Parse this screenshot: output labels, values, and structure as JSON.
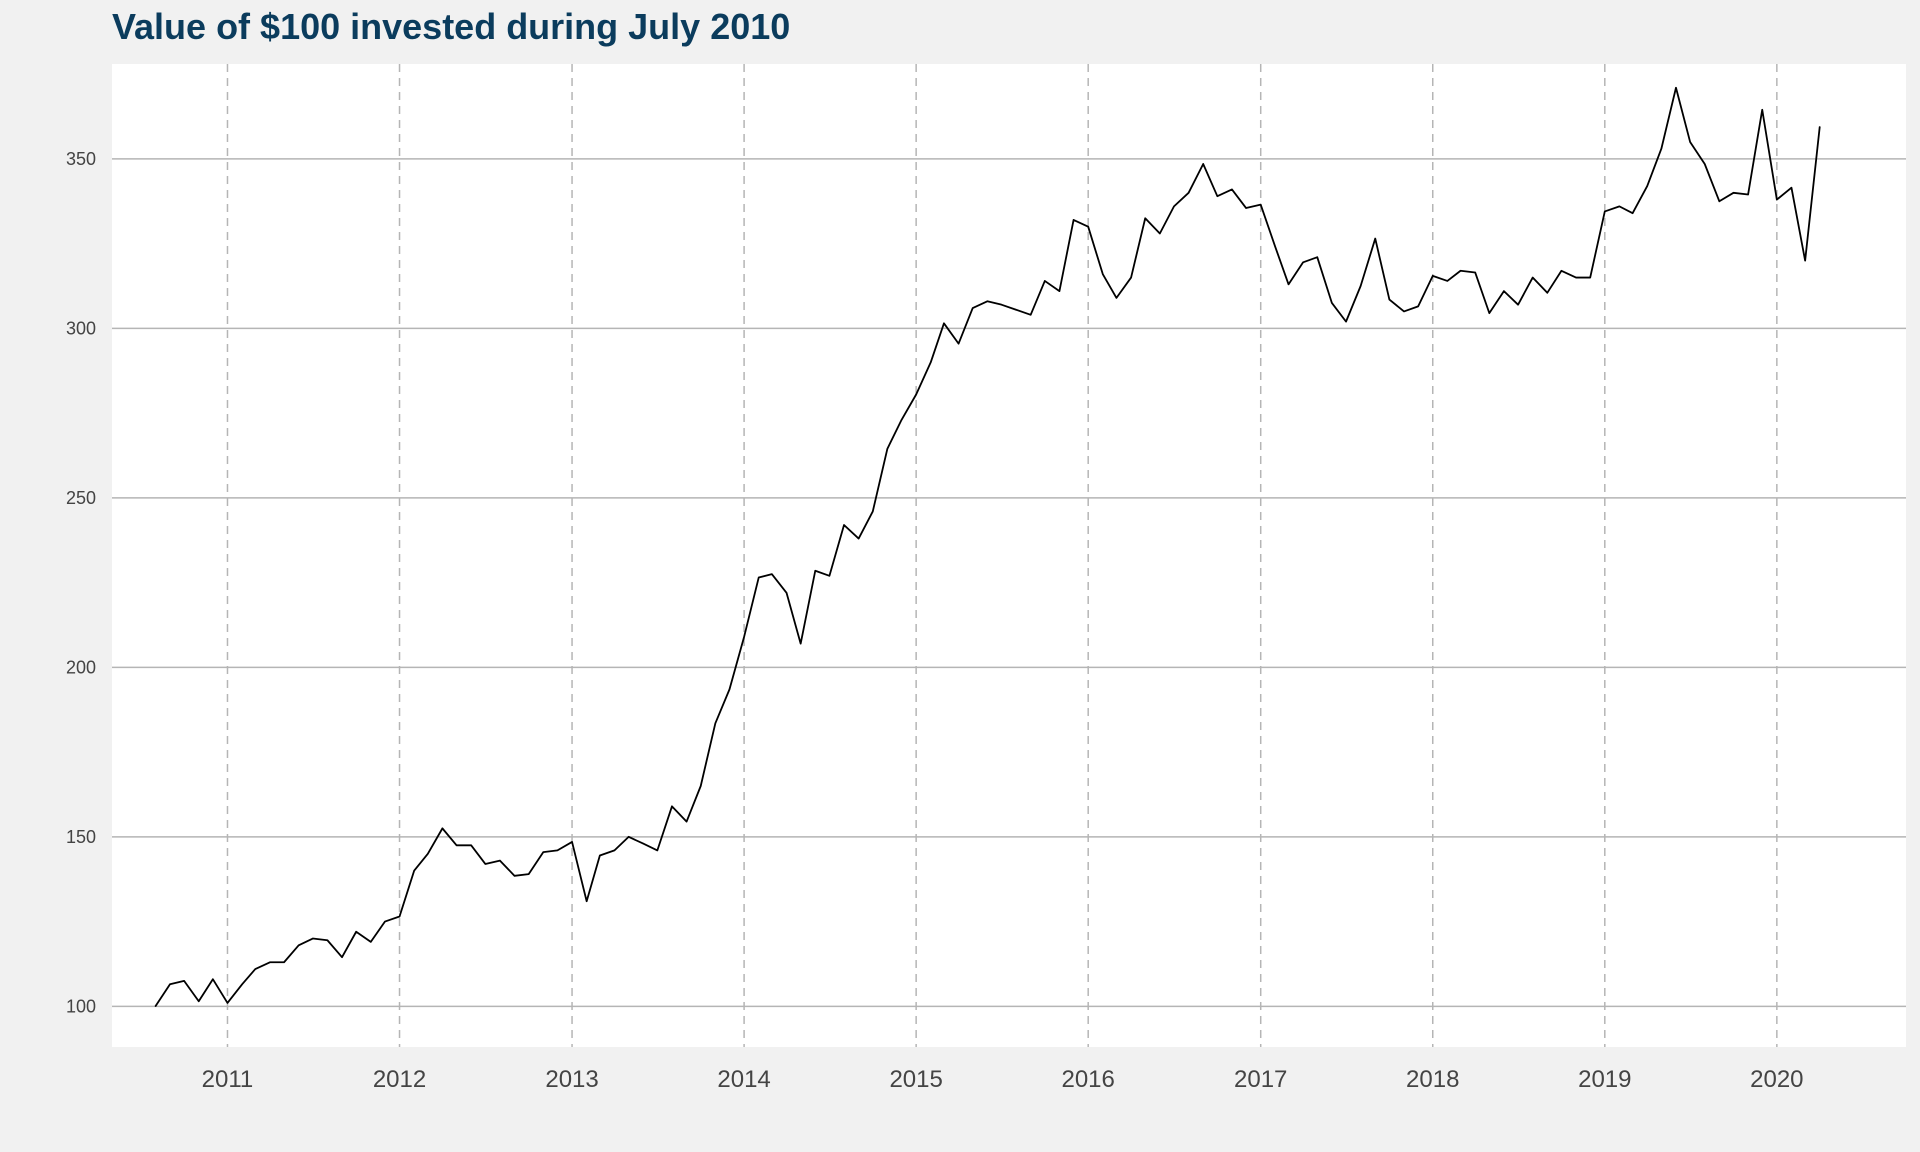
{
  "chart_data": {
    "type": "line",
    "title": "Value of $100 invested during July 2010",
    "xlabel": "",
    "ylabel": "",
    "xlim": [
      "2010-05-01",
      "2020-10-01"
    ],
    "ylim": [
      88,
      378
    ],
    "y_ticks": [
      100,
      150,
      200,
      250,
      300,
      350
    ],
    "x_ticks": [
      "2011-01-01",
      "2012-01-01",
      "2013-01-01",
      "2014-01-01",
      "2015-01-01",
      "2016-01-01",
      "2017-01-01",
      "2018-01-01",
      "2019-01-01",
      "2020-01-01"
    ],
    "x_tick_labels": [
      "2011",
      "2012",
      "2013",
      "2014",
      "2015",
      "2016",
      "2017",
      "2018",
      "2019",
      "2020"
    ],
    "y_grid": "solid",
    "x_grid": "dashed",
    "series": [
      {
        "color": "#000000",
        "x": [
          "2010-08-01",
          "2010-09-01",
          "2010-10-01",
          "2010-11-01",
          "2010-12-01",
          "2011-01-01",
          "2011-02-01",
          "2011-03-01",
          "2011-04-01",
          "2011-05-01",
          "2011-06-01",
          "2011-07-01",
          "2011-08-01",
          "2011-09-01",
          "2011-10-01",
          "2011-11-01",
          "2011-12-01",
          "2012-01-01",
          "2012-02-01",
          "2012-03-01",
          "2012-04-01",
          "2012-05-01",
          "2012-06-01",
          "2012-07-01",
          "2012-08-01",
          "2012-09-01",
          "2012-10-01",
          "2012-11-01",
          "2012-12-01",
          "2013-01-01",
          "2013-02-01",
          "2013-03-01",
          "2013-04-01",
          "2013-05-01",
          "2013-06-01",
          "2013-07-01",
          "2013-08-01",
          "2013-09-01",
          "2013-10-01",
          "2013-11-01",
          "2013-12-01",
          "2014-01-01",
          "2014-02-01",
          "2014-03-01",
          "2014-04-01",
          "2014-05-01",
          "2014-06-01",
          "2014-07-01",
          "2014-08-01",
          "2014-09-01",
          "2014-10-01",
          "2014-11-01",
          "2014-12-01",
          "2015-01-01",
          "2015-02-01",
          "2015-03-01",
          "2015-04-01",
          "2015-05-01",
          "2015-06-01",
          "2015-07-01",
          "2015-08-01",
          "2015-09-01",
          "2015-10-01",
          "2015-11-01",
          "2015-12-01",
          "2016-01-01",
          "2016-02-01",
          "2016-03-01",
          "2016-04-01",
          "2016-05-01",
          "2016-06-01",
          "2016-07-01",
          "2016-08-01",
          "2016-09-01",
          "2016-10-01",
          "2016-11-01",
          "2016-12-01",
          "2017-01-01",
          "2017-02-01",
          "2017-03-01",
          "2017-04-01",
          "2017-05-01",
          "2017-06-01",
          "2017-07-01",
          "2017-08-01",
          "2017-09-01",
          "2017-10-01",
          "2017-11-01",
          "2017-12-01",
          "2018-01-01",
          "2018-02-01",
          "2018-03-01",
          "2018-04-01",
          "2018-05-01",
          "2018-06-01",
          "2018-07-01",
          "2018-08-01",
          "2018-09-01",
          "2018-10-01",
          "2018-11-01",
          "2018-12-01",
          "2019-01-01",
          "2019-02-01",
          "2019-03-01",
          "2019-04-01",
          "2019-05-01",
          "2019-06-01",
          "2019-07-01",
          "2019-08-01",
          "2019-09-01",
          "2019-10-01",
          "2019-11-01",
          "2019-12-01",
          "2020-01-01",
          "2020-02-01",
          "2020-03-01",
          "2020-04-01"
        ],
        "values": [
          100,
          106.5,
          107.5,
          101.5,
          108,
          101,
          106.5,
          111,
          113,
          113,
          118,
          120,
          119.5,
          114.5,
          122,
          119,
          125,
          126.5,
          140,
          145,
          152.5,
          147.5,
          147.5,
          142,
          143,
          138.5,
          139,
          145.5,
          146,
          148.5,
          131,
          144.5,
          146,
          150,
          148,
          146,
          159,
          154.5,
          165,
          183.5,
          193.5,
          209,
          226.5,
          227.5,
          222,
          207,
          228.5,
          227,
          242,
          238,
          246,
          264.5,
          273,
          280.5,
          290,
          301.5,
          295.5,
          306,
          308,
          307,
          305.5,
          304,
          314,
          311,
          332,
          330,
          316,
          309,
          315,
          332.5,
          328,
          336,
          340,
          348.5,
          339,
          341,
          335.5,
          336.5,
          324,
          313,
          319.5,
          321,
          307.5,
          302,
          312.5,
          326.5,
          308.5,
          305,
          306.5,
          315.5,
          314,
          317,
          316.5,
          304.5,
          311,
          307,
          315,
          310.5,
          317,
          315,
          315,
          334.5,
          336,
          334,
          342,
          353,
          371,
          355,
          348.5,
          337.5,
          340,
          339.5,
          364.5,
          338,
          341.5,
          320,
          359.5
        ]
      }
    ]
  }
}
